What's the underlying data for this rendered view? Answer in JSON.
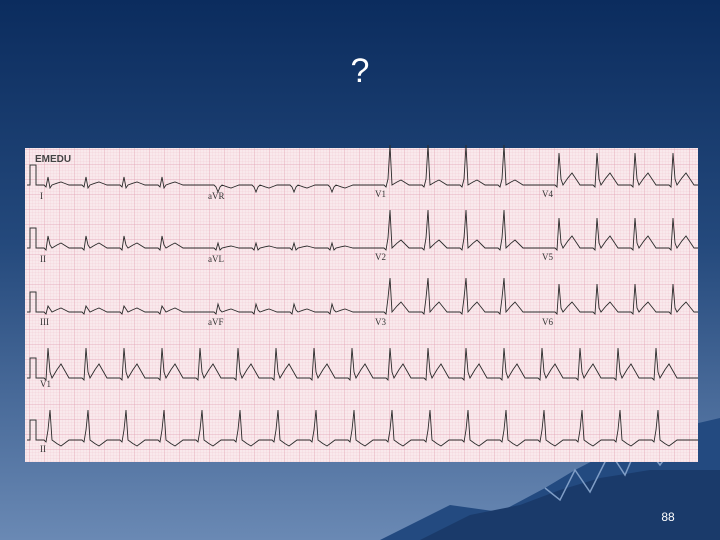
{
  "slide": {
    "title": "?",
    "page_number": "88"
  },
  "ecg": {
    "brand": "EMEDU",
    "lead_labels": [
      "I",
      "aVR",
      "V1",
      "V4",
      "II",
      "aVL",
      "V2",
      "V5",
      "III",
      "aVF",
      "V3",
      "V6",
      "V1",
      "II"
    ]
  }
}
